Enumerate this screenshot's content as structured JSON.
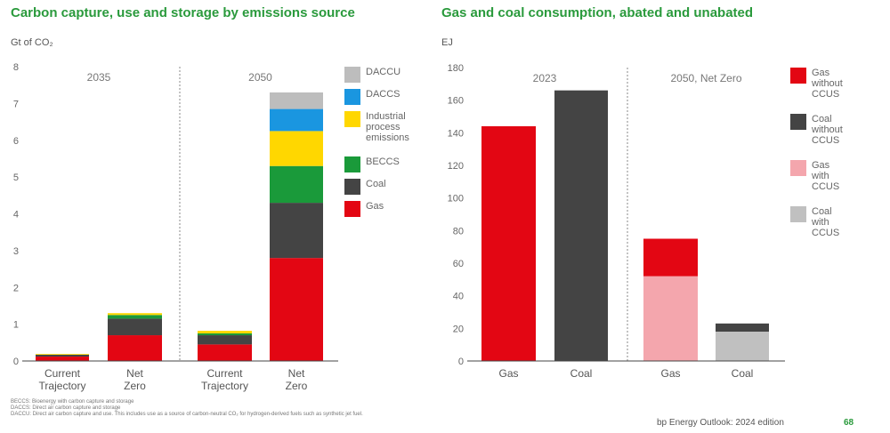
{
  "footnotes": [
    "BECCS: Bioenergy with carbon capture and storage",
    "DACCS: Direct air carbon capture and storage",
    "DACCU: Direct air carbon capture and use. This includes use as a source of carbon-neutral CO₂ for hydrogen-derived fuels such as synthetic jet fuel."
  ],
  "footer": {
    "brand": "bp Energy Outlook: 2024 edition",
    "page": "68"
  },
  "colors": {
    "gas": "#e30613",
    "coal": "#444444",
    "beccs": "#1a9a3a",
    "industrial": "#ffd700",
    "daccs": "#1a96e0",
    "daccu": "#bdbdbd",
    "gas_ccus": "#f4a6ad",
    "coal_ccus": "#c0c0c0",
    "title": "#2a9a3c"
  },
  "chart_data": [
    {
      "type": "bar",
      "stacked": true,
      "title": "Carbon capture, use and storage by emissions source",
      "ylabel": "Gt of CO₂",
      "ylim": [
        0,
        8
      ],
      "yticks": [
        0,
        1,
        2,
        3,
        4,
        5,
        6,
        7,
        8
      ],
      "groups": [
        {
          "label": "2035",
          "categories": [
            0,
            1
          ]
        },
        {
          "label": "2050",
          "categories": [
            2,
            3
          ]
        }
      ],
      "categories": [
        [
          "Current",
          "Trajectory"
        ],
        [
          "Net",
          "Zero"
        ],
        [
          "Current",
          "Trajectory"
        ],
        [
          "Net",
          "Zero"
        ]
      ],
      "series": [
        {
          "name": "Gas",
          "key": "gas",
          "values": [
            0.12,
            0.7,
            0.45,
            2.8
          ]
        },
        {
          "name": "Coal",
          "key": "coal",
          "values": [
            0.05,
            0.45,
            0.25,
            1.5
          ]
        },
        {
          "name": "BECCS",
          "key": "beccs",
          "values": [
            0.0,
            0.1,
            0.05,
            1.0
          ]
        },
        {
          "name": "Industrial process emissions",
          "key": "industrial",
          "values": [
            0.02,
            0.05,
            0.07,
            0.95
          ]
        },
        {
          "name": "DACCS",
          "key": "daccs",
          "values": [
            0.0,
            0.0,
            0.0,
            0.6
          ]
        },
        {
          "name": "DACCU",
          "key": "daccu",
          "values": [
            0.0,
            0.0,
            0.0,
            0.45
          ]
        }
      ],
      "legend": "right"
    },
    {
      "type": "bar",
      "stacked": true,
      "title": "Gas and coal consumption, abated and unabated",
      "ylabel": "EJ",
      "ylim": [
        0,
        180
      ],
      "yticks": [
        0,
        20,
        40,
        60,
        80,
        100,
        120,
        140,
        160,
        180
      ],
      "groups": [
        {
          "label": "2023",
          "categories": [
            0,
            1
          ]
        },
        {
          "label": "2050, Net Zero",
          "categories": [
            2,
            3
          ]
        }
      ],
      "categories": [
        [
          "Gas"
        ],
        [
          "Coal"
        ],
        [
          "Gas"
        ],
        [
          "Coal"
        ]
      ],
      "series": [
        {
          "name": "Gas with CCUS",
          "key": "gas_ccus",
          "values": [
            0,
            0,
            52,
            0
          ]
        },
        {
          "name": "Gas without CCUS",
          "key": "gas",
          "values": [
            144,
            0,
            23,
            0
          ]
        },
        {
          "name": "Coal with CCUS",
          "key": "coal_ccus",
          "values": [
            0,
            0,
            0,
            18
          ]
        },
        {
          "name": "Coal without CCUS",
          "key": "coal",
          "values": [
            0,
            166,
            0,
            5
          ]
        }
      ],
      "legend_order": [
        {
          "name": "Gas without CCUS",
          "key": "gas",
          "lines": [
            "Gas",
            "without",
            "CCUS"
          ]
        },
        {
          "name": "Coal without CCUS",
          "key": "coal",
          "lines": [
            "Coal",
            "without",
            "CCUS"
          ]
        },
        {
          "name": "Gas with CCUS",
          "key": "gas_ccus",
          "lines": [
            "Gas",
            "with",
            "CCUS"
          ]
        },
        {
          "name": "Coal with CCUS",
          "key": "coal_ccus",
          "lines": [
            "Coal",
            "with",
            "CCUS"
          ]
        }
      ],
      "legend": "right"
    }
  ],
  "left_legend_order": [
    {
      "key": "daccu",
      "lines": [
        "DACCU"
      ]
    },
    {
      "key": "daccs",
      "lines": [
        "DACCS"
      ]
    },
    {
      "key": "industrial",
      "lines": [
        "Industrial",
        "process",
        "emissions"
      ]
    },
    {
      "key": "beccs",
      "lines": [
        "BECCS"
      ]
    },
    {
      "key": "coal",
      "lines": [
        "Coal"
      ]
    },
    {
      "key": "gas",
      "lines": [
        "Gas"
      ]
    }
  ]
}
